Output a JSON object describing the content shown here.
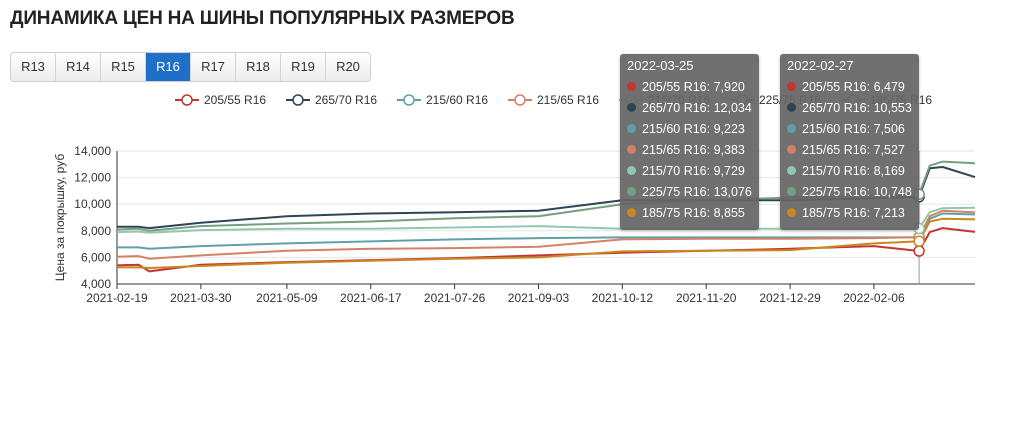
{
  "title": "ДИНАМИКА ЦЕН НА ШИНЫ ПОПУЛЯРНЫХ РАЗМЕРОВ",
  "tabs": [
    {
      "label": "R13",
      "active": false
    },
    {
      "label": "R14",
      "active": false
    },
    {
      "label": "R15",
      "active": false
    },
    {
      "label": "R16",
      "active": true
    },
    {
      "label": "R17",
      "active": false
    },
    {
      "label": "R18",
      "active": false
    },
    {
      "label": "R19",
      "active": false
    },
    {
      "label": "R20",
      "active": false
    }
  ],
  "tooltips": [
    {
      "date": "2022-03-25",
      "items": [
        {
          "label": "205/55 R16: 7,920",
          "color": "#c23531"
        },
        {
          "label": "265/70 R16: 12,034",
          "color": "#2f4554"
        },
        {
          "label": "215/60 R16: 9,223",
          "color": "#61a0a8"
        },
        {
          "label": "215/65 R16: 9,383",
          "color": "#d48265"
        },
        {
          "label": "215/70 R16: 9,729",
          "color": "#91c7ae"
        },
        {
          "label": "225/75 R16: 13,076",
          "color": "#749f83"
        },
        {
          "label": "185/75 R16: 8,855",
          "color": "#ca8622"
        }
      ]
    },
    {
      "date": "2022-02-27",
      "items": [
        {
          "label": "205/55 R16: 6,479",
          "color": "#c23531"
        },
        {
          "label": "265/70 R16: 10,553",
          "color": "#2f4554"
        },
        {
          "label": "215/60 R16: 7,506",
          "color": "#61a0a8"
        },
        {
          "label": "215/65 R16: 7,527",
          "color": "#d48265"
        },
        {
          "label": "215/70 R16: 8,169",
          "color": "#91c7ae"
        },
        {
          "label": "225/75 R16: 10,748",
          "color": "#749f83"
        },
        {
          "label": "185/75 R16: 7,213",
          "color": "#ca8622"
        }
      ]
    }
  ],
  "chart_data": {
    "type": "line",
    "title": "",
    "xlabel": "",
    "ylabel": "Цена за покрышку, руб",
    "ylim": [
      4000,
      14000
    ],
    "yticks": [
      "4,000",
      "6,000",
      "8,000",
      "10,000",
      "12,000",
      "14,000"
    ],
    "xticks": [
      "2021-02-19",
      "2021-03-30",
      "2021-05-09",
      "2021-06-17",
      "2021-07-26",
      "2021-09-03",
      "2021-10-12",
      "2021-11-20",
      "2021-12-29",
      "2022-02-06"
    ],
    "xlim": [
      "2021-02-19",
      "2022-03-25"
    ],
    "grid": "horizontal",
    "legend_position": "top",
    "series": [
      {
        "name": "205/55 R16",
        "color": "#c23531",
        "x": [
          "2021-02-19",
          "2021-03-01",
          "2021-03-06",
          "2021-03-30",
          "2021-05-09",
          "2021-06-17",
          "2021-07-26",
          "2021-09-03",
          "2021-10-12",
          "2021-11-20",
          "2021-12-29",
          "2022-02-06",
          "2022-02-27",
          "2022-03-04",
          "2022-03-10",
          "2022-03-25"
        ],
        "y": [
          5400,
          5450,
          4950,
          5450,
          5650,
          5800,
          5950,
          6150,
          6350,
          6500,
          6650,
          6850,
          6479,
          7900,
          8200,
          7920
        ]
      },
      {
        "name": "265/70 R16",
        "color": "#2f4554",
        "x": [
          "2021-02-19",
          "2021-03-01",
          "2021-03-06",
          "2021-03-30",
          "2021-05-09",
          "2021-06-17",
          "2021-07-26",
          "2021-09-03",
          "2021-10-12",
          "2021-11-20",
          "2021-12-29",
          "2022-02-06",
          "2022-02-27",
          "2022-03-04",
          "2022-03-10",
          "2022-03-25"
        ],
        "y": [
          8300,
          8300,
          8200,
          8600,
          9100,
          9300,
          9400,
          9500,
          10300,
          10300,
          10300,
          10450,
          10553,
          12700,
          12800,
          12034
        ]
      },
      {
        "name": "215/60 R16",
        "color": "#61a0a8",
        "x": [
          "2021-02-19",
          "2021-03-01",
          "2021-03-06",
          "2021-03-30",
          "2021-05-09",
          "2021-06-17",
          "2021-07-26",
          "2021-09-03",
          "2021-10-12",
          "2021-11-20",
          "2021-12-29",
          "2022-02-06",
          "2022-02-27",
          "2022-03-04",
          "2022-03-10",
          "2022-03-25"
        ],
        "y": [
          6750,
          6750,
          6650,
          6850,
          7050,
          7200,
          7350,
          7450,
          7500,
          7500,
          7500,
          7500,
          7506,
          8900,
          9300,
          9223
        ]
      },
      {
        "name": "215/65 R16",
        "color": "#d48265",
        "x": [
          "2021-02-19",
          "2021-03-01",
          "2021-03-06",
          "2021-03-30",
          "2021-05-09",
          "2021-06-17",
          "2021-07-26",
          "2021-09-03",
          "2021-10-12",
          "2021-11-20",
          "2021-12-29",
          "2022-02-06",
          "2022-02-27",
          "2022-03-04",
          "2022-03-10",
          "2022-03-25"
        ],
        "y": [
          6050,
          6100,
          5900,
          6150,
          6500,
          6650,
          6700,
          6800,
          7350,
          7400,
          7400,
          7450,
          7527,
          9100,
          9500,
          9383
        ]
      },
      {
        "name": "215/70 R16",
        "color": "#91c7ae",
        "x": [
          "2021-02-19",
          "2021-03-01",
          "2021-03-06",
          "2021-03-30",
          "2021-05-09",
          "2021-06-17",
          "2021-07-26",
          "2021-09-03",
          "2021-10-12",
          "2021-11-20",
          "2021-12-29",
          "2022-02-06",
          "2022-02-27",
          "2022-03-04",
          "2022-03-10",
          "2022-03-25"
        ],
        "y": [
          7900,
          7950,
          7850,
          8050,
          8150,
          8150,
          8250,
          8350,
          8150,
          8150,
          8150,
          8150,
          8169,
          9400,
          9700,
          9729
        ]
      },
      {
        "name": "225/75 R16",
        "color": "#749f83",
        "x": [
          "2021-02-19",
          "2021-03-01",
          "2021-03-06",
          "2021-03-30",
          "2021-05-09",
          "2021-06-17",
          "2021-07-26",
          "2021-09-03",
          "2021-10-12",
          "2021-11-20",
          "2021-12-29",
          "2022-02-06",
          "2022-02-27",
          "2022-03-04",
          "2022-03-10",
          "2022-03-25"
        ],
        "y": [
          8100,
          8150,
          8000,
          8350,
          8550,
          8700,
          8950,
          9100,
          10000,
          10300,
          10500,
          10650,
          10748,
          12900,
          13200,
          13076
        ]
      },
      {
        "name": "185/75 R16",
        "color": "#ca8622",
        "x": [
          "2021-02-19",
          "2021-03-01",
          "2021-03-06",
          "2021-03-30",
          "2021-05-09",
          "2021-06-17",
          "2021-07-26",
          "2021-09-03",
          "2021-10-12",
          "2021-11-20",
          "2021-12-29",
          "2022-02-06",
          "2022-02-27",
          "2022-03-04",
          "2022-03-10",
          "2022-03-25"
        ],
        "y": [
          5250,
          5250,
          5200,
          5350,
          5600,
          5750,
          5900,
          6000,
          6450,
          6500,
          6550,
          7050,
          7213,
          8700,
          8900,
          8855
        ]
      }
    ]
  }
}
